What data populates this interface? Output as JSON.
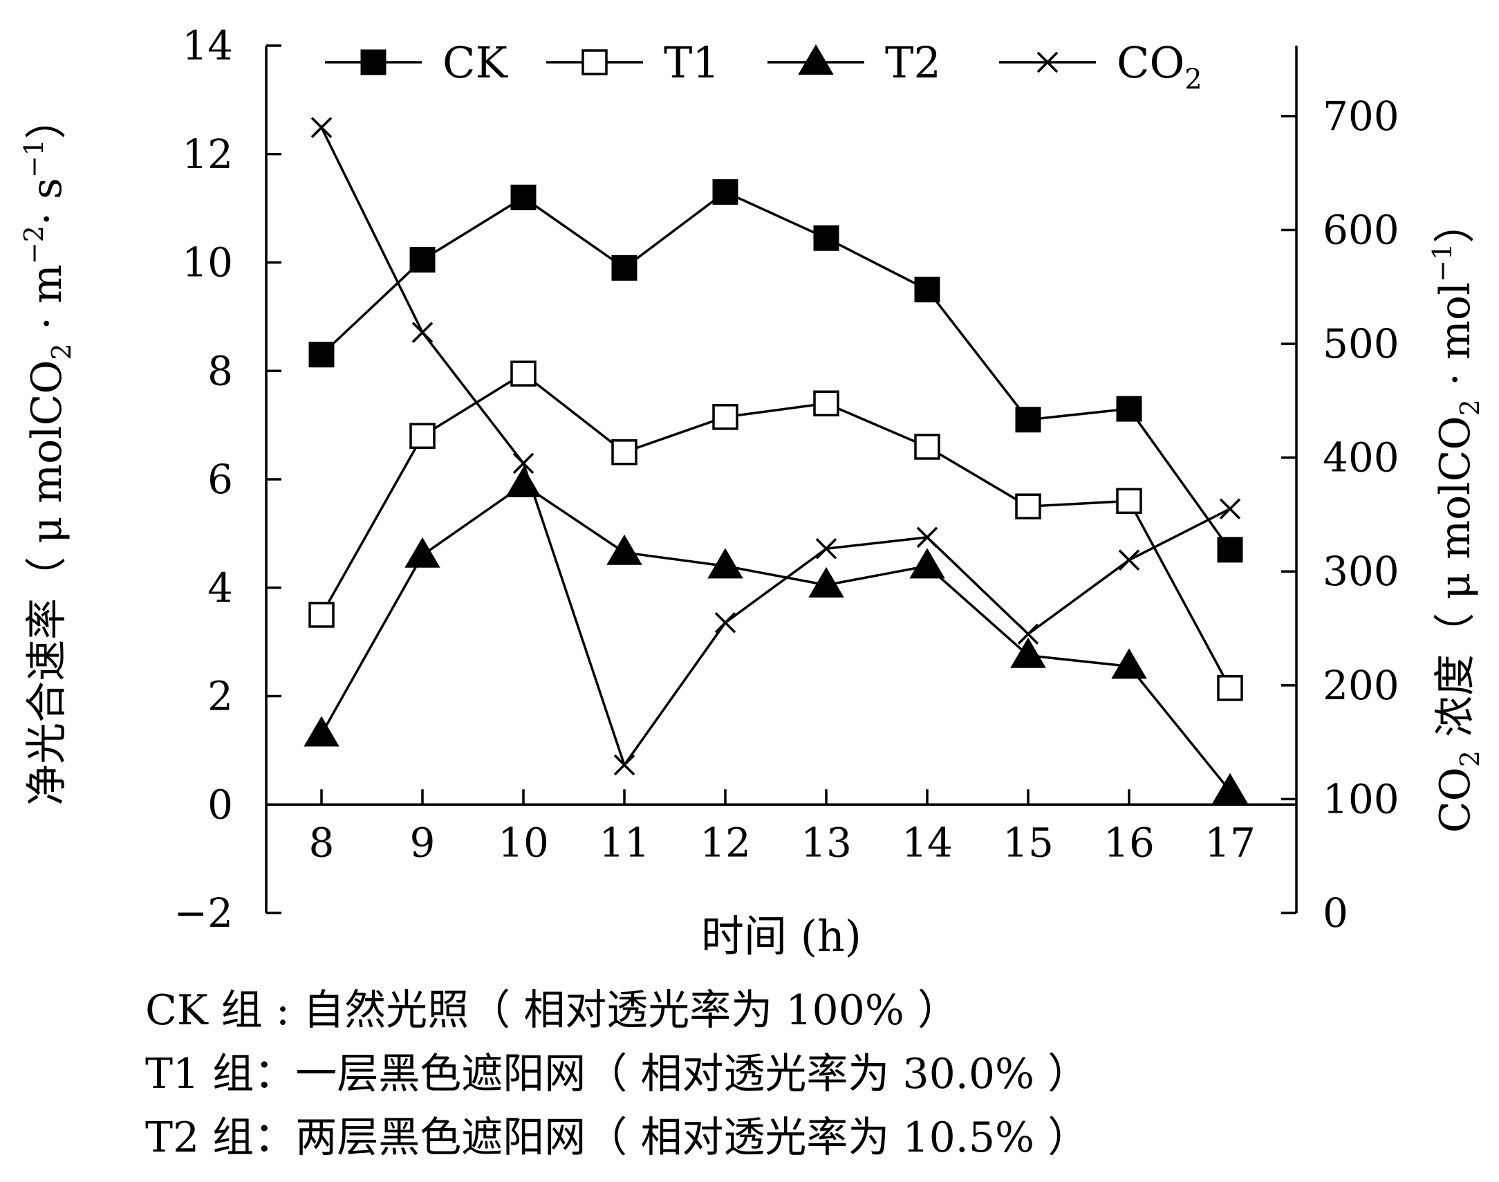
{
  "chart_data": {
    "type": "line",
    "categories": [
      "8",
      "9",
      "10",
      "11",
      "12",
      "13",
      "14",
      "15",
      "16",
      "17"
    ],
    "xlabel": "时间 (h)",
    "ylabel_left": {
      "main": "净光合速率（ μ molCO",
      "sub1": "2",
      "mid": " · m",
      "sup1": "−2",
      "mid2": "· s",
      "sup2": "−1",
      "end": "）"
    },
    "ylabel_right": {
      "pre": "CO",
      "sub0": "2",
      "main": " 浓度（ μ molCO",
      "sub1": "2",
      "mid": " · mol",
      "sup1": "−1",
      "end": "）"
    },
    "ylim_left": [
      -2,
      14
    ],
    "yticks_left": [
      "−2",
      "0",
      "2",
      "4",
      "6",
      "8",
      "10",
      "12",
      "14"
    ],
    "ylim_right": [
      0,
      700
    ],
    "yticks_right": [
      "0",
      "100",
      "200",
      "300",
      "400",
      "500",
      "600",
      "700"
    ],
    "legend_position": "top",
    "series": [
      {
        "name": "CK",
        "axis": "left",
        "marker": "filled-square",
        "values": [
          8.3,
          10.05,
          11.2,
          9.9,
          11.3,
          10.45,
          9.5,
          7.1,
          7.3,
          4.7
        ]
      },
      {
        "name": "T1",
        "axis": "left",
        "marker": "open-square",
        "values": [
          3.5,
          6.8,
          7.95,
          6.5,
          7.15,
          7.4,
          6.6,
          5.5,
          5.6,
          2.15
        ]
      },
      {
        "name": "T2",
        "axis": "left",
        "marker": "filled-triangle",
        "values": [
          1.3,
          4.6,
          5.9,
          4.65,
          4.4,
          4.05,
          4.4,
          2.75,
          2.55,
          0.25
        ]
      },
      {
        "name": "CO",
        "name_sub": "2",
        "axis": "right",
        "marker": "cross",
        "values": [
          690,
          510,
          395,
          130,
          255,
          320,
          330,
          245,
          310,
          355
        ]
      }
    ]
  },
  "notes": [
    "CK 组 : 自然光照（ 相对透光率为 100% ）",
    "T1 组：一层黑色遮阳网（ 相对透光率为 30.0% ）",
    "T2 组：两层黑色遮阳网（ 相对透光率为 10.5% ）"
  ]
}
